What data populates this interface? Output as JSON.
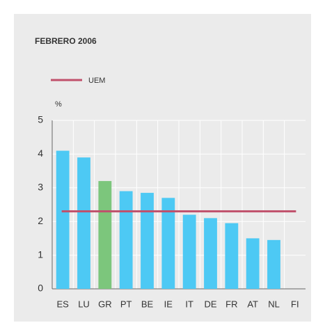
{
  "chart_data": {
    "type": "bar",
    "title": "FEBRERO 2006",
    "y_unit": "%",
    "categories": [
      "ES",
      "LU",
      "GR",
      "PT",
      "BE",
      "IE",
      "IT",
      "DE",
      "FR",
      "AT",
      "NL",
      "FI"
    ],
    "values": [
      4.1,
      3.9,
      3.2,
      2.9,
      2.85,
      2.7,
      2.2,
      2.1,
      1.95,
      1.5,
      1.45,
      null
    ],
    "colors": [
      "#4dc9f4",
      "#4dc9f4",
      "#7cc67c",
      "#4dc9f4",
      "#4dc9f4",
      "#4dc9f4",
      "#4dc9f4",
      "#4dc9f4",
      "#4dc9f4",
      "#4dc9f4",
      "#4dc9f4",
      "#4dc9f4"
    ],
    "reference_line": {
      "name": "UEM",
      "value": 2.3,
      "color": "#c0506b"
    },
    "ylim": [
      0,
      5
    ],
    "yticks": [
      0,
      1,
      2,
      3,
      4,
      5
    ],
    "grid": true
  }
}
